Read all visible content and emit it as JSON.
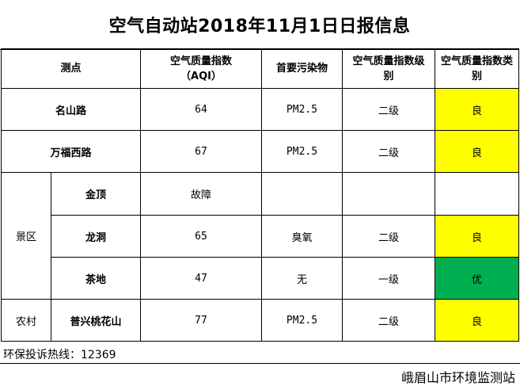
{
  "title": "空气自动站2018年11月1日日报信息",
  "headers": {
    "site": "测点",
    "aqi": "空气质量指数（AQI）",
    "pollutant": "首要污染物",
    "level": "空气质量指数级别",
    "category": "空气质量指数类别"
  },
  "rows": [
    {
      "group": "",
      "site": "名山路",
      "aqi": "64",
      "pollutant": "PM2.5",
      "level": "二级",
      "category": "良",
      "category_color": "#ffff00"
    },
    {
      "group": "",
      "site": "万福西路",
      "aqi": "67",
      "pollutant": "PM2.5",
      "level": "二级",
      "category": "良",
      "category_color": "#ffff00"
    },
    {
      "group": "景区",
      "site": "金顶",
      "aqi": "故障",
      "pollutant": "",
      "level": "",
      "category": "",
      "category_color": "#ffffff"
    },
    {
      "group": "景区",
      "site": "龙洞",
      "aqi": "65",
      "pollutant": "臭氧",
      "level": "二级",
      "category": "良",
      "category_color": "#ffff00"
    },
    {
      "group": "景区",
      "site": "茶地",
      "aqi": "47",
      "pollutant": "无",
      "level": "一级",
      "category": "优",
      "category_color": "#00b050"
    },
    {
      "group": "农村",
      "site": "普兴桃花山",
      "aqi": "77",
      "pollutant": "PM2.5",
      "level": "二级",
      "category": "良",
      "category_color": "#ffff00"
    }
  ],
  "hotline": "环保投诉热线：12369",
  "source": "峨眉山市环境监测站"
}
